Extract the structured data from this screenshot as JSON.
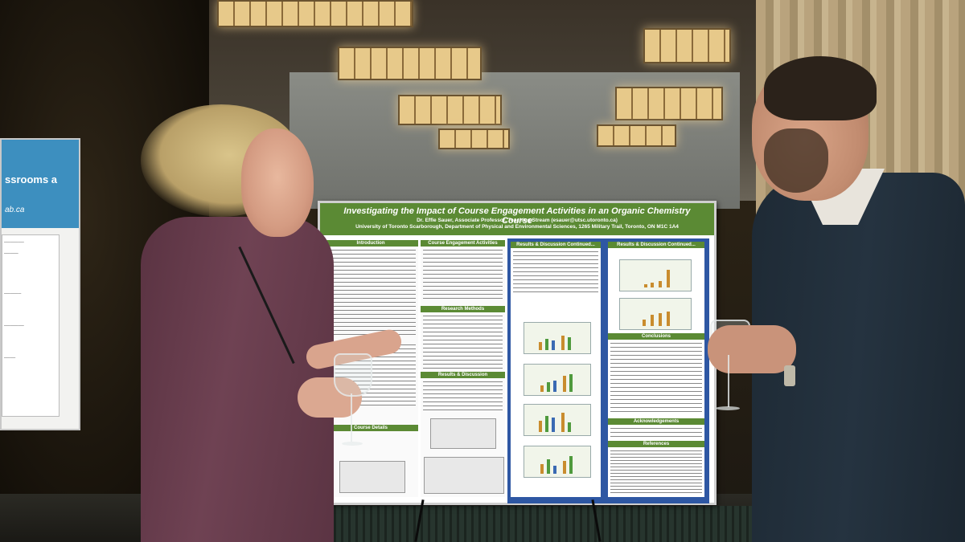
{
  "poster": {
    "title": "Investigating the Impact of Course Engagement Activities in an Organic Chemistry Course",
    "author": "Dr. Effie Sauer, Associate Professor, Teaching Stream (esauer@utsc.utoronto.ca)",
    "affiliation": "University of Toronto Scarborough, Department of Physical and Environmental Sciences, 1265 Military Trail, Toronto, ON M1C 1A4",
    "sections": {
      "introduction": "Introduction",
      "course_activities": "Course Engagement Activities",
      "results_1": "Results & Discussion Continued...",
      "results_2": "Results & Discussion Continued...",
      "research_methods": "Research Methods",
      "results_discussion": "Results & Discussion",
      "course_details": "Course Details",
      "conclusions": "Conclusions",
      "acknowledgements": "Acknowledgements",
      "references": "References"
    }
  },
  "left_poster": {
    "heading": "ssrooms a",
    "subline": "ab.ca"
  },
  "colors": {
    "poster_green": "#5b8a34",
    "poster_blue": "#2e57a3",
    "left_poster_blue": "#3d8fbf"
  }
}
